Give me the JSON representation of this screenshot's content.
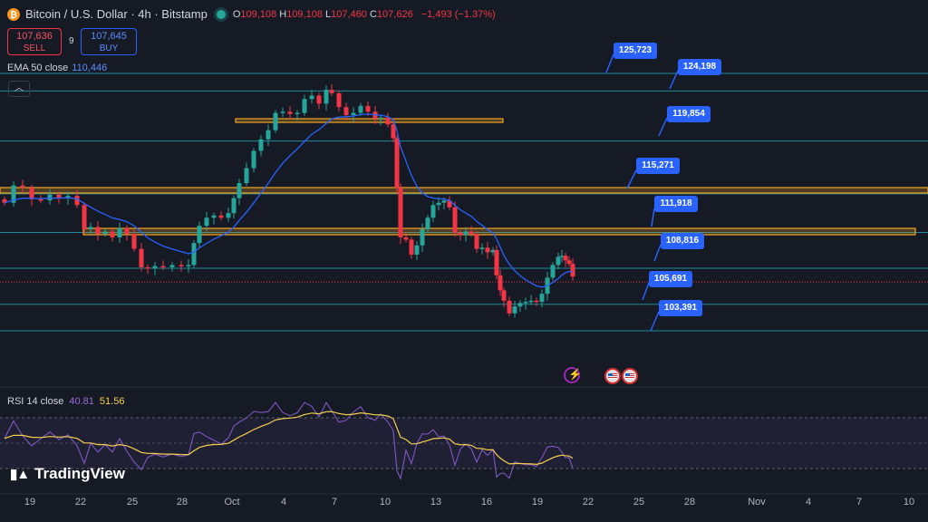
{
  "header": {
    "symbol": "Bitcoin / U.S. Dollar · 4h · Bitstamp",
    "o_label": "O",
    "o": "109,108",
    "h_label": "H",
    "h": "109,108",
    "l_label": "L",
    "l": "107,460",
    "c_label": "C",
    "c": "107,626",
    "change": "−1,493 (−1.37%)"
  },
  "trade": {
    "sell_price": "107,636",
    "sell_label": "SELL",
    "spread": "9",
    "buy_price": "107,645",
    "buy_label": "BUY"
  },
  "ema": {
    "label": "EMA 50 close",
    "value": "110,446"
  },
  "rsi": {
    "label": "RSI 14 close",
    "value": "40.81",
    "ma": "51.56"
  },
  "logo": {
    "text": "TradingView"
  },
  "levels": [
    "125,723",
    "124,198",
    "119,854",
    "115,271",
    "111,918",
    "108,816",
    "105,691",
    "103,391"
  ],
  "date_axis": [
    "19",
    "22",
    "25",
    "28",
    "Oct",
    "4",
    "7",
    "10",
    "13",
    "16",
    "19",
    "22",
    "25",
    "28",
    "Nov",
    "4",
    "7",
    "10"
  ],
  "colors": {
    "bg": "#161a25",
    "up": "#26a69a",
    "down": "#f23645",
    "ema": "#2962ff",
    "zone": "#f5a623",
    "level": "#1f8a9a",
    "tag": "#2962ff",
    "rsi": "#7e57c2",
    "rsi_ma": "#f6d04d"
  },
  "icons": [
    "bitcoin-icon",
    "collapse-chevron-icon",
    "us-flag-event-icon",
    "event-lightning-icon"
  ],
  "chart_data": {
    "type": "candlestick",
    "interval": "4h",
    "price_levels": [
      125723,
      124198,
      119854,
      115271,
      111918,
      108816,
      105691,
      103391
    ],
    "last_close": 107626,
    "ema50": 110446,
    "rsi": 40.81,
    "rsi_ma": 51.56
  }
}
